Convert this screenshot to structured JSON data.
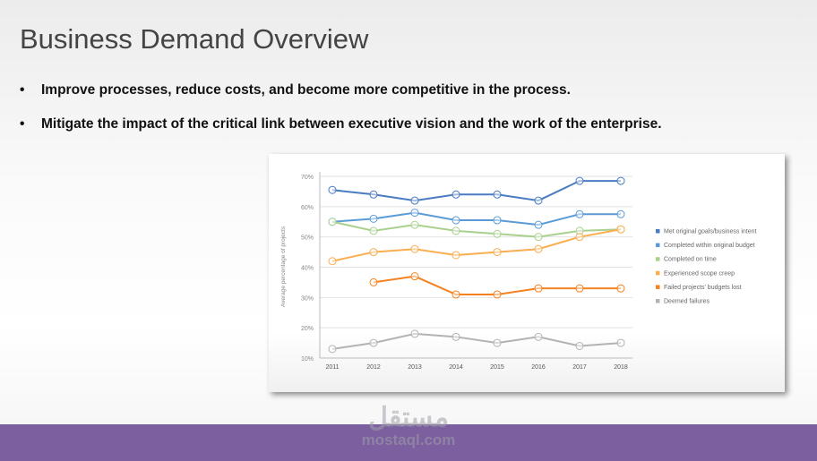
{
  "slide": {
    "title": "Business Demand Overview",
    "bullets": [
      "Improve processes, reduce costs, and become more competitive in the process.",
      "Mitigate the impact of the critical link between executive vision and the work of the enterprise."
    ],
    "watermark": {
      "arabic": "مستقل",
      "latin": "mostaql.com"
    },
    "footer_color": "#7b5f9f"
  },
  "chart_data": {
    "type": "line",
    "title": "",
    "xlabel": "",
    "ylabel": "Average percentage of projects",
    "categories": [
      "2011",
      "2012",
      "2013",
      "2014",
      "2015",
      "2016",
      "2017",
      "2018"
    ],
    "yticks": [
      "10%",
      "20%",
      "30%",
      "40%",
      "50%",
      "60%",
      "70%"
    ],
    "ylim": [
      10,
      70
    ],
    "grid": true,
    "legend_position": "right",
    "series": [
      {
        "name": "Met original goals/business intent",
        "color": "#4a7cc2",
        "values": [
          65.5,
          64,
          62,
          64,
          64,
          62,
          68.5,
          68.5
        ]
      },
      {
        "name": "Completed within original budget",
        "color": "#5b9bd5",
        "values": [
          55,
          56,
          58,
          55.5,
          55.5,
          54,
          57.5,
          57.5
        ]
      },
      {
        "name": "Completed on time",
        "color": "#a9d18e",
        "values": [
          55,
          52,
          54,
          52,
          51,
          50,
          52,
          52.5
        ]
      },
      {
        "name": "Experienced scope creep",
        "color": "#f9ae4f",
        "values": [
          42,
          45,
          46,
          44,
          45,
          46,
          50,
          52.5
        ]
      },
      {
        "name": "Failed projects' budgets lost",
        "color": "#f58220",
        "values": [
          null,
          35,
          37,
          31,
          31,
          33,
          33,
          33
        ]
      },
      {
        "name": "Deemed failures",
        "color": "#b3b3b3",
        "values": [
          13,
          15,
          18,
          17,
          15,
          17,
          14,
          15
        ]
      }
    ]
  }
}
